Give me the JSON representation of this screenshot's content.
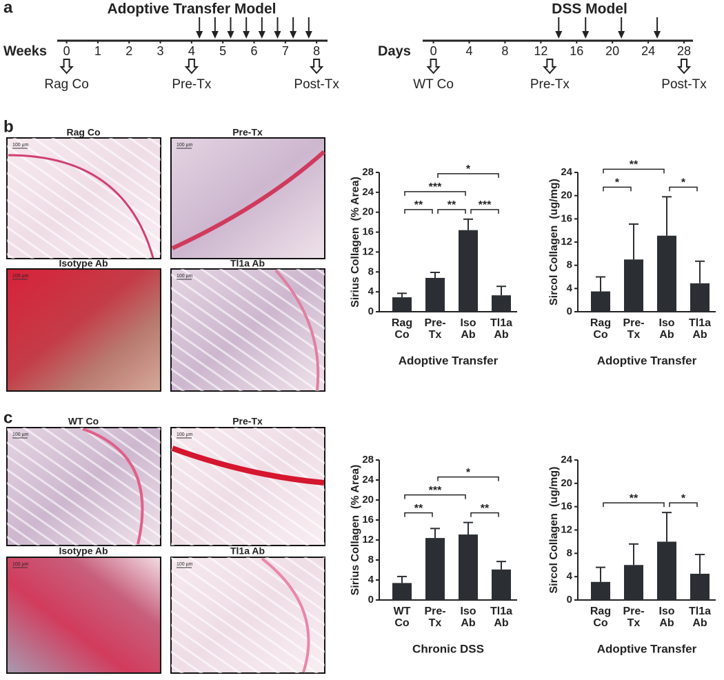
{
  "panel_labels": [
    "a",
    "b",
    "c"
  ],
  "timelines": [
    {
      "title": "Adoptive Transfer Model",
      "unit": "Weeks",
      "xlim": [
        -0.3,
        8.35
      ],
      "ticks": [
        0,
        1,
        2,
        3,
        4,
        5,
        6,
        7,
        8
      ],
      "treatments": [
        4.25,
        4.75,
        5.25,
        5.75,
        6.25,
        6.75,
        7.25,
        7.75
      ],
      "timepoints": [
        {
          "at": 0,
          "label": "Rag Co"
        },
        {
          "at": 4,
          "label": "Pre-Tx"
        },
        {
          "at": 8,
          "label": "Post-Tx"
        }
      ]
    },
    {
      "title": "DSS Model",
      "unit": "Days",
      "xlim": [
        -1.2,
        29
      ],
      "ticks": [
        0,
        4,
        8,
        12,
        16,
        20,
        24,
        28
      ],
      "treatments": [
        14,
        17,
        21,
        25
      ],
      "timepoints": [
        {
          "at": 0,
          "label": "WT Co"
        },
        {
          "at": 13,
          "label": "Pre-Tx"
        },
        {
          "at": 28,
          "label": "Post-Tx"
        }
      ]
    }
  ],
  "histology": {
    "b": [
      "Rag Co",
      "Pre-Tx",
      "Isotype Ab",
      "Tl1a Ab"
    ],
    "c": [
      "WT Co",
      "Pre-Tx",
      "Isotype Ab",
      "Tl1a Ab"
    ],
    "scale_bar": "100 µm"
  },
  "chart_data": [
    {
      "type": "bar",
      "ylabel": "Sirius Collagen  (% Area)",
      "xlabel": "Adoptive Transfer",
      "categories": [
        "Rag Co",
        "Pre-Tx",
        "Iso Ab",
        "Tl1a Ab"
      ],
      "values": [
        2.9,
        6.8,
        16.4,
        3.3
      ],
      "errors": [
        0.8,
        1.1,
        2.2,
        1.8
      ],
      "ylim": [
        0,
        28
      ],
      "yticks": [
        0,
        4,
        8,
        12,
        16,
        20,
        24,
        28
      ],
      "color": "#2b2f33",
      "significance": [
        {
          "from": 0,
          "to": 1,
          "label": "**"
        },
        {
          "from": 1,
          "to": 2,
          "label": "**"
        },
        {
          "from": 2,
          "to": 3,
          "label": "***"
        },
        {
          "from": 0,
          "to": 2,
          "label": "***"
        },
        {
          "from": 1,
          "to": 3,
          "label": "*"
        }
      ]
    },
    {
      "type": "bar",
      "ylabel": "Sircol Collagen  (ug/mg)",
      "xlabel": "Adoptive Transfer",
      "categories": [
        "Rag Co",
        "Pre-Tx",
        "Iso Ab",
        "Tl1a Ab"
      ],
      "values": [
        3.5,
        9.0,
        13.1,
        4.9
      ],
      "errors": [
        2.5,
        6.1,
        6.7,
        3.8
      ],
      "ylim": [
        0,
        24
      ],
      "yticks": [
        0,
        4,
        8,
        12,
        16,
        20,
        24
      ],
      "color": "#2b2f33",
      "significance": [
        {
          "from": 0,
          "to": 1,
          "label": "*"
        },
        {
          "from": 2,
          "to": 3,
          "label": "*"
        },
        {
          "from": 0,
          "to": 2,
          "label": "**"
        }
      ]
    },
    {
      "type": "bar",
      "ylabel": "Sirius Collagen  (% Area)",
      "xlabel": "Chronic DSS",
      "categories": [
        "WT Co",
        "Pre-Tx",
        "Iso Ab",
        "Tl1a Ab"
      ],
      "values": [
        3.4,
        12.4,
        13.1,
        6.1
      ],
      "errors": [
        1.3,
        1.9,
        2.4,
        1.6
      ],
      "ylim": [
        0,
        28
      ],
      "yticks": [
        0,
        4,
        8,
        12,
        16,
        20,
        24,
        28
      ],
      "color": "#2b2f33",
      "significance": [
        {
          "from": 0,
          "to": 1,
          "label": "**"
        },
        {
          "from": 0,
          "to": 2,
          "label": "***"
        },
        {
          "from": 2,
          "to": 3,
          "label": "**"
        },
        {
          "from": 1,
          "to": 3,
          "label": "*"
        }
      ]
    },
    {
      "type": "bar",
      "ylabel": "Sircol Collagen  (ug/mg)",
      "xlabel": "Adoptive Transfer",
      "categories": [
        "Rag Co",
        "Pre-Tx",
        "Iso Ab",
        "Tl1a Ab"
      ],
      "values": [
        3.1,
        6.0,
        10.0,
        4.5
      ],
      "errors": [
        2.5,
        3.6,
        5.0,
        3.3
      ],
      "ylim": [
        0,
        24
      ],
      "yticks": [
        0,
        4,
        8,
        12,
        16,
        20,
        24
      ],
      "color": "#2b2f33",
      "significance": [
        {
          "from": 0,
          "to": 2,
          "label": "**"
        },
        {
          "from": 2,
          "to": 3,
          "label": "*"
        }
      ]
    }
  ]
}
